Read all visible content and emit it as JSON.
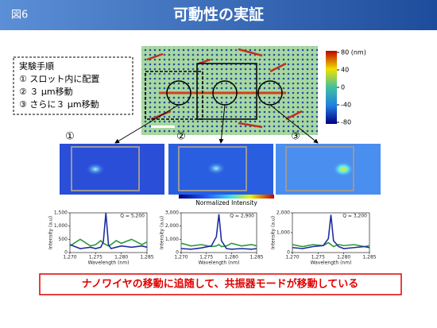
{
  "header": {
    "figure": "図6",
    "title": "可動性の実証"
  },
  "procedure": {
    "heading": "実験手順",
    "steps": [
      "① スロット内に配置",
      "② ３ μm移動",
      "③ さらに３ μm移動"
    ]
  },
  "height_colorbar": {
    "lim": [
      -80,
      80
    ],
    "ticks": [
      {
        "value": 80,
        "label": "80 (nm)"
      },
      40,
      0,
      -40,
      -80
    ]
  },
  "image_labels": [
    "①",
    "②",
    "③"
  ],
  "intensity_colorbar": {
    "label": "Normalized Intensity"
  },
  "plots": [
    {
      "q_label": "Q = 5,200",
      "ylabel": "Intensity (a.u)",
      "xlabel": "Wavelength (nm)",
      "x": [
        1270,
        1272,
        1274,
        1275,
        1276,
        1276.5,
        1277,
        1277.5,
        1278,
        1279,
        1280,
        1282,
        1284,
        1285
      ],
      "xlim": [
        1270,
        1285
      ],
      "xticks": [
        {
          "value": 1270,
          "label": "1,270"
        },
        {
          "value": 1275,
          "label": "1,275"
        },
        {
          "value": 1280,
          "label": "1,280"
        },
        {
          "value": 1285,
          "label": "1,285"
        }
      ],
      "ylim": [
        0,
        1500
      ],
      "yticks": [
        0,
        500,
        {
          "value": 1000,
          "label": "1,000"
        },
        {
          "value": 1500,
          "label": "1,500"
        }
      ],
      "series": [
        {
          "color": "#2a9a3a",
          "values": [
            250,
            500,
            250,
            300,
            450,
            350,
            300,
            250,
            300,
            450,
            350,
            500,
            300,
            400
          ]
        },
        {
          "color": "#1f2fa0",
          "values": [
            300,
            150,
            200,
            150,
            200,
            400,
            1500,
            300,
            150,
            200,
            250,
            200,
            250,
            200
          ]
        }
      ]
    },
    {
      "q_label": "Q = 2,900",
      "ylabel": "Intensity (a.u)",
      "xlabel": "Wavelength (nm)",
      "x": [
        1270,
        1272,
        1274,
        1276,
        1277,
        1277.5,
        1278,
        1279,
        1280,
        1282,
        1284,
        1285
      ],
      "xlim": [
        1270,
        1285
      ],
      "xticks": [
        {
          "value": 1270,
          "label": "1,270"
        },
        {
          "value": 1275,
          "label": "1,275"
        },
        {
          "value": 1280,
          "label": "1,280"
        },
        {
          "value": 1285,
          "label": "1,285"
        }
      ],
      "ylim": [
        0,
        3000
      ],
      "yticks": [
        0,
        {
          "value": 1000,
          "label": "1,000"
        },
        {
          "value": 2000,
          "label": "2,000"
        },
        {
          "value": 3000,
          "label": "3,000"
        }
      ],
      "series": [
        {
          "color": "#2a9a3a",
          "values": [
            700,
            500,
            600,
            450,
            500,
            600,
            450,
            500,
            700,
            500,
            600,
            500
          ]
        },
        {
          "color": "#1f2fa0",
          "values": [
            300,
            250,
            350,
            500,
            1200,
            2900,
            900,
            300,
            250,
            300,
            250,
            300
          ]
        }
      ]
    },
    {
      "q_label": "Q = 3,200",
      "ylabel": "Intensity (a.u)",
      "xlabel": "Wavelength (nm)",
      "x": [
        1270,
        1272,
        1274,
        1276,
        1277,
        1277.5,
        1278,
        1279,
        1280,
        1282,
        1284,
        1285
      ],
      "xlim": [
        1270,
        1285
      ],
      "xticks": [
        {
          "value": 1270,
          "label": "1,270"
        },
        {
          "value": 1275,
          "label": "1,275"
        },
        {
          "value": 1280,
          "label": "1,280"
        },
        {
          "value": 1285,
          "label": "1,285"
        }
      ],
      "ylim": [
        0,
        2000
      ],
      "yticks": [
        0,
        {
          "value": 1000,
          "label": "1,000"
        },
        {
          "value": 2000,
          "label": "2,000"
        }
      ],
      "series": [
        {
          "color": "#2a9a3a",
          "values": [
            400,
            300,
            400,
            350,
            500,
            400,
            300,
            400,
            350,
            400,
            300,
            350
          ]
        },
        {
          "color": "#1f2fa0",
          "values": [
            250,
            200,
            300,
            350,
            700,
            1900,
            600,
            300,
            200,
            250,
            300,
            250
          ]
        }
      ]
    }
  ],
  "conclusion": "ナノワイヤの移動に追随して、共振器モードが移動している"
}
